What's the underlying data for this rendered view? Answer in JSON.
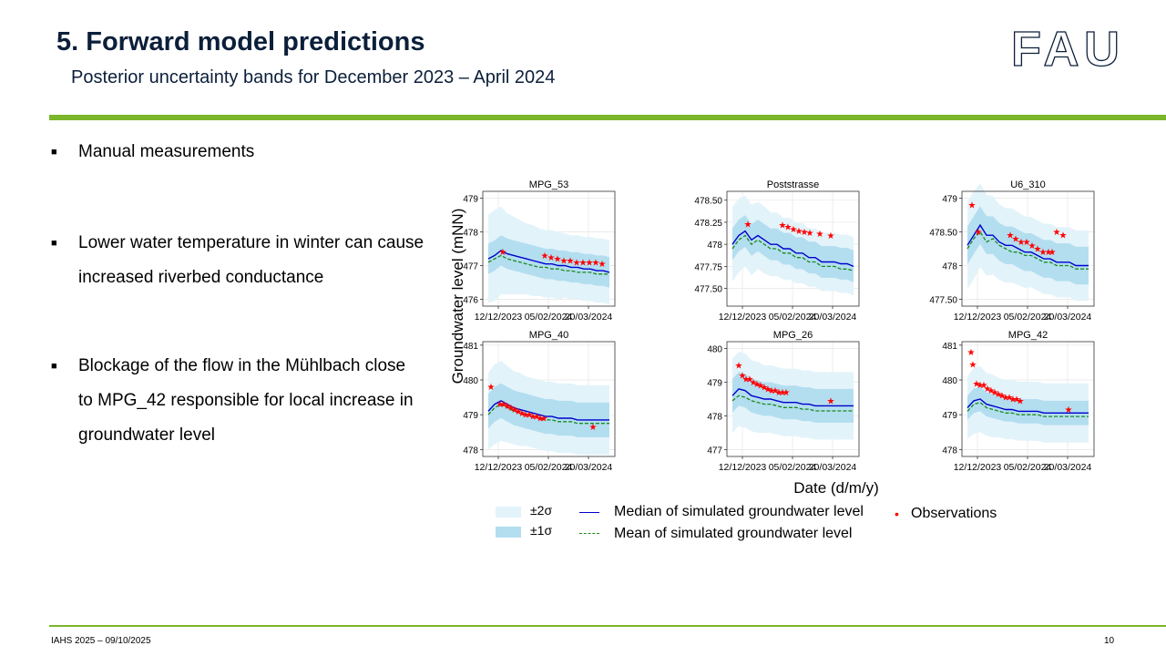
{
  "slide": {
    "title": "5. Forward model predictions",
    "subtitle": "Posterior uncertainty bands for December 2023 – April 2024",
    "logo": "FAU",
    "bullets": [
      "Manual measurements",
      "Lower water temperature in winter can cause increased riverbed conductance",
      "Blockage of the flow in the Mühlbach close to MPG_42 responsible for local increase in groundwater level"
    ],
    "footer_left": "IAHS 2025 – 09/10/2025",
    "page_number": "10"
  },
  "colors": {
    "accent_green": "#7ab52a",
    "band_2sigma": "#e3f3fa",
    "band_1sigma": "#b3def0",
    "median": "#0000cc",
    "mean": "#1b8a1b",
    "observations": "#ff0000"
  },
  "chart_data": {
    "type": "line",
    "ylabel": "Groundwater level (mNN)",
    "xlabel": "Date (d/m/y)",
    "x_tick_labels": [
      "12/12/2023",
      "05/02/2024",
      "20/03/2024"
    ],
    "x": [
      "01/12/2023",
      "08/12/2023",
      "15/12/2023",
      "22/12/2023",
      "29/12/2023",
      "05/01/2024",
      "12/01/2024",
      "19/01/2024",
      "26/01/2024",
      "02/02/2024",
      "09/02/2024",
      "16/02/2024",
      "23/02/2024",
      "01/03/2024",
      "08/03/2024",
      "15/03/2024",
      "22/03/2024",
      "29/03/2024",
      "05/04/2024",
      "12/04/2024"
    ],
    "legend": [
      "±2σ",
      "±1σ",
      "Median of simulated groundwater level",
      "Mean of simulated groundwater level",
      "Observations"
    ],
    "legend_position": "bottom",
    "panels": [
      {
        "title": "MPG_53",
        "ylim": [
          475.8,
          479.2
        ],
        "yticks": [
          476,
          477,
          478,
          479
        ],
        "median": [
          477.2,
          477.3,
          477.45,
          477.35,
          477.3,
          477.25,
          477.2,
          477.15,
          477.1,
          477.05,
          477.05,
          477.0,
          477.0,
          476.95,
          476.95,
          476.9,
          476.9,
          476.85,
          476.85,
          476.8
        ],
        "mean": [
          477.1,
          477.2,
          477.3,
          477.2,
          477.15,
          477.1,
          477.05,
          477.0,
          476.95,
          476.95,
          476.9,
          476.9,
          476.85,
          476.85,
          476.8,
          476.8,
          476.8,
          476.75,
          476.75,
          476.75
        ],
        "sd1": [
          0.45,
          0.45,
          0.45,
          0.45,
          0.45,
          0.45,
          0.45,
          0.45,
          0.45,
          0.45,
          0.45,
          0.45,
          0.45,
          0.45,
          0.45,
          0.45,
          0.45,
          0.45,
          0.45,
          0.45
        ],
        "sd2": [
          1.3,
          1.35,
          1.3,
          1.2,
          1.15,
          1.1,
          1.05,
          1.05,
          1.0,
          1.0,
          1.0,
          1.0,
          0.95,
          0.95,
          0.95,
          0.95,
          0.95,
          0.95,
          0.95,
          0.95
        ],
        "obs_x": [
          "17/12/2023",
          "01/02/2024",
          "08/02/2024",
          "15/02/2024",
          "22/02/2024",
          "29/02/2024",
          "07/03/2024",
          "14/03/2024",
          "21/03/2024",
          "28/03/2024",
          "04/04/2024"
        ],
        "obs_y": [
          477.4,
          477.3,
          477.25,
          477.2,
          477.15,
          477.15,
          477.1,
          477.1,
          477.1,
          477.1,
          477.05
        ]
      },
      {
        "title": "Poststrasse",
        "ylim": [
          477.3,
          478.6
        ],
        "yticks": [
          477.5,
          477.75,
          478.0,
          478.25,
          478.5
        ],
        "median": [
          478.0,
          478.1,
          478.15,
          478.05,
          478.1,
          478.05,
          478.0,
          478.0,
          477.95,
          477.95,
          477.9,
          477.9,
          477.85,
          477.85,
          477.8,
          477.8,
          477.8,
          477.78,
          477.78,
          477.75
        ],
        "mean": [
          477.95,
          478.05,
          478.1,
          478.0,
          478.05,
          478.0,
          477.95,
          477.95,
          477.9,
          477.9,
          477.85,
          477.85,
          477.8,
          477.8,
          477.75,
          477.75,
          477.75,
          477.72,
          477.72,
          477.7
        ],
        "sd1": [
          0.18,
          0.18,
          0.18,
          0.18,
          0.18,
          0.18,
          0.18,
          0.18,
          0.18,
          0.18,
          0.18,
          0.18,
          0.18,
          0.18,
          0.18,
          0.18,
          0.18,
          0.18,
          0.18,
          0.18
        ],
        "sd2": [
          0.42,
          0.42,
          0.4,
          0.4,
          0.38,
          0.38,
          0.36,
          0.36,
          0.35,
          0.35,
          0.34,
          0.34,
          0.33,
          0.33,
          0.33,
          0.33,
          0.33,
          0.33,
          0.33,
          0.33
        ],
        "obs_x": [
          "18/12/2023",
          "25/01/2024",
          "31/01/2024",
          "06/02/2024",
          "12/02/2024",
          "18/02/2024",
          "24/02/2024",
          "06/03/2024",
          "18/03/2024"
        ],
        "obs_y": [
          478.23,
          478.22,
          478.2,
          478.17,
          478.15,
          478.14,
          478.13,
          478.12,
          478.1
        ]
      },
      {
        "title": "U6_310",
        "ylim": [
          477.4,
          479.1
        ],
        "yticks": [
          477.5,
          478.0,
          478.5,
          479.0
        ],
        "median": [
          478.3,
          478.45,
          478.6,
          478.45,
          478.45,
          478.35,
          478.3,
          478.3,
          478.25,
          478.2,
          478.2,
          478.15,
          478.1,
          478.1,
          478.05,
          478.05,
          478.05,
          478.0,
          478.0,
          478.0
        ],
        "mean": [
          478.25,
          478.4,
          478.5,
          478.35,
          478.4,
          478.3,
          478.25,
          478.2,
          478.2,
          478.15,
          478.15,
          478.1,
          478.05,
          478.05,
          478.0,
          478.0,
          478.0,
          477.95,
          477.95,
          477.95
        ],
        "sd1": [
          0.28,
          0.28,
          0.28,
          0.28,
          0.28,
          0.28,
          0.28,
          0.28,
          0.28,
          0.28,
          0.28,
          0.28,
          0.28,
          0.28,
          0.28,
          0.28,
          0.28,
          0.28,
          0.28,
          0.28
        ],
        "sd2": [
          0.65,
          0.65,
          0.62,
          0.6,
          0.58,
          0.56,
          0.55,
          0.55,
          0.54,
          0.53,
          0.52,
          0.52,
          0.52,
          0.52,
          0.52,
          0.52,
          0.52,
          0.52,
          0.52,
          0.52
        ],
        "obs_x": [
          "06/12/2023",
          "13/12/2023",
          "17/01/2024",
          "23/01/2024",
          "29/01/2024",
          "04/02/2024",
          "10/02/2024",
          "16/02/2024",
          "22/02/2024",
          "28/02/2024",
          "03/03/2024",
          "08/03/2024",
          "15/03/2024"
        ],
        "obs_y": [
          478.9,
          478.5,
          478.45,
          478.4,
          478.35,
          478.35,
          478.3,
          478.25,
          478.2,
          478.2,
          478.2,
          478.5,
          478.45
        ]
      },
      {
        "title": "MPG_40",
        "ylim": [
          477.8,
          481.1
        ],
        "yticks": [
          478,
          479,
          480,
          481
        ],
        "median": [
          479.1,
          479.3,
          479.4,
          479.3,
          479.2,
          479.15,
          479.1,
          479.05,
          479.0,
          478.95,
          478.95,
          478.9,
          478.9,
          478.9,
          478.85,
          478.85,
          478.85,
          478.85,
          478.85,
          478.85
        ],
        "mean": [
          479.0,
          479.2,
          479.3,
          479.2,
          479.1,
          479.05,
          479.0,
          478.95,
          478.9,
          478.85,
          478.85,
          478.8,
          478.8,
          478.8,
          478.75,
          478.75,
          478.75,
          478.75,
          478.75,
          478.75
        ],
        "sd1": [
          0.5,
          0.5,
          0.5,
          0.5,
          0.5,
          0.5,
          0.5,
          0.5,
          0.5,
          0.5,
          0.5,
          0.5,
          0.5,
          0.5,
          0.5,
          0.5,
          0.5,
          0.5,
          0.5,
          0.5
        ],
        "sd2": [
          1.1,
          1.15,
          1.15,
          1.1,
          1.05,
          1.05,
          1.0,
          1.0,
          1.0,
          1.0,
          1.0,
          1.0,
          1.0,
          1.0,
          1.0,
          1.0,
          1.0,
          1.0,
          1.0,
          1.0
        ],
        "obs_x": [
          "04/12/2023",
          "14/12/2023",
          "18/12/2023",
          "22/12/2023",
          "26/12/2023",
          "30/12/2023",
          "03/01/2024",
          "07/01/2024",
          "11/01/2024",
          "15/01/2024",
          "19/01/2024",
          "23/01/2024",
          "27/01/2024",
          "31/01/2024",
          "25/03/2024"
        ],
        "obs_y": [
          479.8,
          479.3,
          479.3,
          479.25,
          479.2,
          479.15,
          479.1,
          479.05,
          479.0,
          479.0,
          478.95,
          478.95,
          478.9,
          478.9,
          478.65
        ]
      },
      {
        "title": "MPG_26",
        "ylim": [
          476.8,
          480.2
        ],
        "yticks": [
          477,
          478,
          479,
          480
        ],
        "median": [
          478.6,
          478.8,
          478.75,
          478.6,
          478.55,
          478.5,
          478.5,
          478.45,
          478.4,
          478.4,
          478.4,
          478.35,
          478.35,
          478.3,
          478.3,
          478.3,
          478.3,
          478.3,
          478.3,
          478.3
        ],
        "mean": [
          478.45,
          478.6,
          478.55,
          478.45,
          478.4,
          478.35,
          478.35,
          478.3,
          478.25,
          478.25,
          478.25,
          478.2,
          478.2,
          478.15,
          478.15,
          478.15,
          478.15,
          478.15,
          478.15,
          478.15
        ],
        "sd1": [
          0.5,
          0.5,
          0.5,
          0.5,
          0.5,
          0.5,
          0.5,
          0.5,
          0.5,
          0.5,
          0.5,
          0.5,
          0.5,
          0.5,
          0.5,
          0.5,
          0.5,
          0.5,
          0.5,
          0.5
        ],
        "sd2": [
          1.1,
          1.1,
          1.1,
          1.05,
          1.05,
          1.0,
          1.0,
          1.0,
          1.0,
          1.0,
          1.0,
          1.0,
          1.0,
          1.0,
          1.0,
          1.0,
          1.0,
          1.0,
          1.0,
          1.0
        ],
        "obs_x": [
          "08/12/2023",
          "12/12/2023",
          "16/12/2023",
          "20/12/2023",
          "24/12/2023",
          "28/12/2023",
          "01/01/2024",
          "05/01/2024",
          "09/01/2024",
          "13/01/2024",
          "17/01/2024",
          "21/01/2024",
          "25/01/2024",
          "29/01/2024",
          "18/03/2024"
        ],
        "obs_y": [
          479.5,
          479.2,
          479.1,
          479.1,
          479.0,
          478.95,
          478.9,
          478.85,
          478.8,
          478.75,
          478.75,
          478.7,
          478.7,
          478.7,
          478.45
        ]
      },
      {
        "title": "MPG_42",
        "ylim": [
          477.8,
          481.1
        ],
        "yticks": [
          478,
          479,
          480,
          481
        ],
        "median": [
          479.2,
          479.4,
          479.45,
          479.3,
          479.25,
          479.2,
          479.15,
          479.15,
          479.1,
          479.1,
          479.1,
          479.1,
          479.05,
          479.05,
          479.05,
          479.05,
          479.05,
          479.05,
          479.05,
          479.05
        ],
        "mean": [
          479.1,
          479.3,
          479.35,
          479.2,
          479.15,
          479.1,
          479.05,
          479.05,
          479.0,
          479.0,
          479.0,
          479.0,
          478.95,
          478.95,
          478.95,
          478.95,
          478.95,
          478.95,
          478.95,
          478.95
        ],
        "sd1": [
          0.35,
          0.35,
          0.35,
          0.35,
          0.35,
          0.35,
          0.35,
          0.35,
          0.35,
          0.35,
          0.35,
          0.35,
          0.35,
          0.35,
          0.35,
          0.35,
          0.35,
          0.35,
          0.35,
          0.35
        ],
        "sd2": [
          0.9,
          0.95,
          0.95,
          0.9,
          0.9,
          0.85,
          0.85,
          0.85,
          0.85,
          0.85,
          0.85,
          0.85,
          0.85,
          0.85,
          0.85,
          0.85,
          0.85,
          0.85,
          0.85,
          0.85
        ],
        "obs_x": [
          "05/12/2023",
          "07/12/2023",
          "11/12/2023",
          "15/12/2023",
          "19/12/2023",
          "23/12/2023",
          "27/12/2023",
          "31/12/2023",
          "04/01/2024",
          "08/01/2024",
          "12/01/2024",
          "16/01/2024",
          "20/01/2024",
          "24/01/2024",
          "28/01/2024",
          "21/03/2024"
        ],
        "obs_y": [
          480.8,
          480.45,
          479.9,
          479.85,
          479.85,
          479.75,
          479.7,
          479.65,
          479.6,
          479.55,
          479.5,
          479.5,
          479.45,
          479.45,
          479.4,
          479.15
        ]
      }
    ]
  }
}
